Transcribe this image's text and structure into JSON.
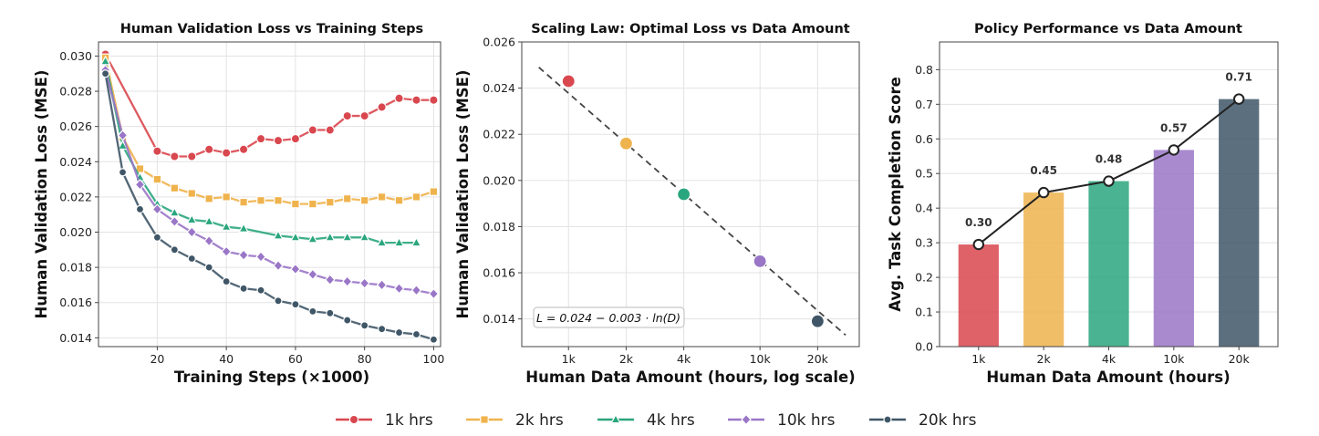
{
  "colors": {
    "1k": "#d9474f",
    "2k": "#efb34d",
    "4k": "#2aa67e",
    "10k": "#9a76c7",
    "20k": "#3f5667"
  },
  "legend": [
    {
      "label": "1k hrs",
      "color": "#d9474f",
      "marker": "circle"
    },
    {
      "label": "2k hrs",
      "color": "#efb34d",
      "marker": "square"
    },
    {
      "label": "4k hrs",
      "color": "#2aa67e",
      "marker": "triangle"
    },
    {
      "label": "10k hrs",
      "color": "#9a76c7",
      "marker": "diamond"
    },
    {
      "label": "20k hrs",
      "color": "#3f5667",
      "marker": "circle-small"
    }
  ],
  "chart_data": [
    {
      "type": "line",
      "title": "Human Validation Loss vs Training Steps",
      "xlabel": "Training Steps (×1000)",
      "ylabel": "Human Validation Loss (MSE)",
      "xlim": [
        3,
        102
      ],
      "ylim": [
        0.0135,
        0.0308
      ],
      "xticks": [
        20,
        40,
        60,
        80,
        100
      ],
      "yticks": [
        0.014,
        0.016,
        0.018,
        0.02,
        0.022,
        0.024,
        0.026,
        0.028,
        0.03
      ],
      "ytick_labels": [
        "0.014",
        "0.016",
        "0.018",
        "0.020",
        "0.022",
        "0.024",
        "0.026",
        "0.028",
        "0.030"
      ],
      "grid": true,
      "series": [
        {
          "name": "1k hrs",
          "color": "#d9474f",
          "marker": "circle",
          "x": [
            5,
            20,
            25,
            30,
            35,
            40,
            45,
            50,
            55,
            60,
            65,
            70,
            75,
            80,
            85,
            90,
            95,
            100
          ],
          "y": [
            0.0301,
            0.0246,
            0.0243,
            0.0243,
            0.0247,
            0.0245,
            0.0247,
            0.0253,
            0.0252,
            0.0253,
            0.0258,
            0.0258,
            0.0266,
            0.0266,
            0.0271,
            0.0276,
            0.0275,
            0.0275
          ]
        },
        {
          "name": "2k hrs",
          "color": "#efb34d",
          "marker": "square",
          "x": [
            5,
            10,
            15,
            20,
            25,
            30,
            35,
            40,
            45,
            50,
            55,
            60,
            65,
            70,
            75,
            80,
            85,
            90,
            95,
            100
          ],
          "y": [
            0.0299,
            0.0254,
            0.0236,
            0.023,
            0.0225,
            0.0222,
            0.0219,
            0.022,
            0.0217,
            0.0218,
            0.0218,
            0.0216,
            0.0216,
            0.0217,
            0.0219,
            0.0218,
            0.022,
            0.0218,
            0.022,
            0.0223
          ]
        },
        {
          "name": "4k hrs",
          "color": "#2aa67e",
          "marker": "triangle",
          "x": [
            5,
            10,
            15,
            20,
            25,
            30,
            35,
            40,
            45,
            55,
            60,
            65,
            70,
            75,
            80,
            85,
            90,
            95
          ],
          "y": [
            0.0297,
            0.0249,
            0.0231,
            0.0216,
            0.0211,
            0.0207,
            0.0206,
            0.0203,
            0.0202,
            0.0198,
            0.0197,
            0.0196,
            0.0197,
            0.0197,
            0.0197,
            0.0194,
            0.0194,
            0.0194
          ]
        },
        {
          "name": "10k hrs",
          "color": "#9a76c7",
          "marker": "diamond",
          "x": [
            5,
            10,
            15,
            20,
            25,
            30,
            35,
            40,
            45,
            50,
            55,
            60,
            65,
            70,
            75,
            80,
            85,
            90,
            95,
            100
          ],
          "y": [
            0.0292,
            0.0255,
            0.0227,
            0.0213,
            0.0206,
            0.02,
            0.0195,
            0.0189,
            0.0187,
            0.0186,
            0.0181,
            0.0179,
            0.0176,
            0.0173,
            0.0172,
            0.0171,
            0.017,
            0.0168,
            0.0167,
            0.0165
          ]
        },
        {
          "name": "20k hrs",
          "color": "#3f5667",
          "marker": "circle-small",
          "x": [
            5,
            10,
            15,
            20,
            25,
            30,
            35,
            40,
            45,
            50,
            55,
            60,
            65,
            70,
            75,
            80,
            85,
            90,
            95,
            100
          ],
          "y": [
            0.029,
            0.0234,
            0.0213,
            0.0197,
            0.019,
            0.0185,
            0.018,
            0.0172,
            0.0168,
            0.0167,
            0.0161,
            0.0159,
            0.0155,
            0.0154,
            0.015,
            0.0147,
            0.0145,
            0.0143,
            0.0142,
            0.0139
          ]
        }
      ]
    },
    {
      "type": "scatter",
      "title": "Scaling Law: Optimal Loss vs Data Amount",
      "xlabel": "Human Data Amount (hours, log scale)",
      "ylabel": "Human Validation Loss (MSE)",
      "xscale": "log",
      "xlim": [
        570,
        33000
      ],
      "ylim": [
        0.0128,
        0.026
      ],
      "xticks": [
        1000,
        2000,
        4000,
        10000,
        20000
      ],
      "xtick_labels": [
        "1k",
        "2k",
        "4k",
        "10k",
        "20k"
      ],
      "yticks": [
        0.014,
        0.016,
        0.018,
        0.02,
        0.022,
        0.024,
        0.026
      ],
      "ytick_labels": [
        "0.014",
        "0.016",
        "0.018",
        "0.020",
        "0.022",
        "0.024",
        "0.026"
      ],
      "grid": true,
      "points": [
        {
          "x": 1000,
          "y": 0.0243,
          "color": "#d9474f"
        },
        {
          "x": 2000,
          "y": 0.0216,
          "color": "#efb34d"
        },
        {
          "x": 4000,
          "y": 0.0194,
          "color": "#2aa67e"
        },
        {
          "x": 10000,
          "y": 0.0165,
          "color": "#9a76c7"
        },
        {
          "x": 20000,
          "y": 0.0139,
          "color": "#3f5667"
        }
      ],
      "fit_line": {
        "x": [
          700,
          28000
        ],
        "y": [
          0.0249,
          0.0133
        ],
        "style": "dashed"
      },
      "annotation": "L = 0.024 − 0.003 · ln(D)"
    },
    {
      "type": "bar",
      "title": "Policy Performance vs Data Amount",
      "xlabel": "Human Data Amount (hours)",
      "ylabel": "Avg. Task Completion Score",
      "categories": [
        "1k",
        "2k",
        "4k",
        "10k",
        "20k"
      ],
      "values": [
        0.295,
        0.445,
        0.478,
        0.568,
        0.715
      ],
      "value_labels": [
        "0.30",
        "0.45",
        "0.48",
        "0.57",
        "0.71"
      ],
      "colors": [
        "#d9474f",
        "#efb34d",
        "#2aa67e",
        "#9a76c7",
        "#3f5667"
      ],
      "ylim": [
        0,
        0.88
      ],
      "yticks": [
        0,
        0.1,
        0.2,
        0.3,
        0.4,
        0.5,
        0.6,
        0.7,
        0.8
      ],
      "ytick_labels": [
        "0.0",
        "0.1",
        "0.2",
        "0.3",
        "0.4",
        "0.5",
        "0.6",
        "0.7",
        "0.8"
      ],
      "grid": true,
      "overlay_line": true
    }
  ]
}
